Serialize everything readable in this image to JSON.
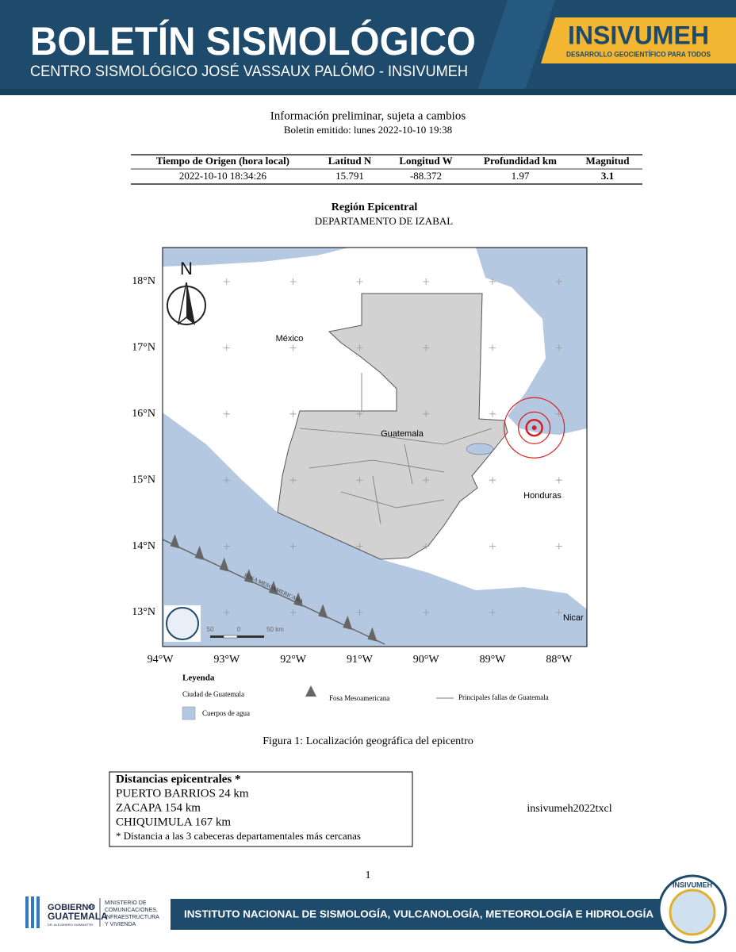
{
  "header": {
    "title": "BOLETÍN SISMOLÓGICO",
    "subtitle": "CENTRO SISMOLÓGICO JOSÉ VASSAUX PALÓMO - INSIVUMEH",
    "brand": "INSIVUMEH",
    "tagline": "DESARROLLO GEOCIENTÍFICO PARA TODOS"
  },
  "notice": "Información preliminar, sujeta a cambios",
  "issued": "Boletin emitido:  lunes 2022-10-10 19:38",
  "table": {
    "headers": [
      "Tiempo de Origen (hora local)",
      "Latitud N",
      "Longitud W",
      "Profundidad km",
      "Magnitud"
    ],
    "rows": [
      [
        "2022-10-10 18:34:26",
        15.791,
        -88.372,
        1.97,
        3.1
      ]
    ]
  },
  "region": {
    "title": "Región Epicentral",
    "name": "DEPARTAMENTO DE IZABAL"
  },
  "map": {
    "lat_labels": [
      "18°N",
      "17°N",
      "16°N",
      "15°N",
      "14°N",
      "13°N"
    ],
    "lon_labels": [
      "94°W",
      "93°W",
      "92°W",
      "91°W",
      "90°W",
      "89°W",
      "88°W"
    ],
    "north": "N",
    "places": [
      "México",
      "Guatemala",
      "Honduras",
      "Nicar"
    ],
    "trench": "FOSA MESOAMERICANA",
    "scale": [
      "50",
      "0",
      "50 km"
    ]
  },
  "legend": {
    "title": "Leyenda",
    "city": "Ciudad de Guatemala",
    "water": "Cuerpos de agua",
    "trench": "Fosa Mesoamericana",
    "faults": "Principales fallas de Guatemala"
  },
  "caption": "Figura 1: Localización geográfica del epicentro",
  "distances": {
    "title": "Distancias epicentrales *",
    "lines": [
      "PUERTO BARRIOS 24 km",
      "ZACAPA 154 km",
      "CHIQUIMULA 167 km"
    ],
    "note": "* Distancia a las 3 cabeceras departamentales más cercanas"
  },
  "code": "insivumeh2022txcl",
  "page": 1,
  "footer": {
    "gov": "GOBIERNO",
    "de": "de",
    "country": "GUATEMALA",
    "president": "DR. ALEJANDRO GIAMMATTEI",
    "ministry": [
      "MINISTERIO DE",
      "COMUNICACIONES,",
      "INFRAESTRUCTURA",
      "Y VIVIENDA"
    ],
    "institute": "INSTITUTO NACIONAL DE SISMOLOGÍA, VULCANOLOGÍA, METEOROLOGÍA E HIDROLOGÍA",
    "logo": "INSIVUMEH"
  }
}
